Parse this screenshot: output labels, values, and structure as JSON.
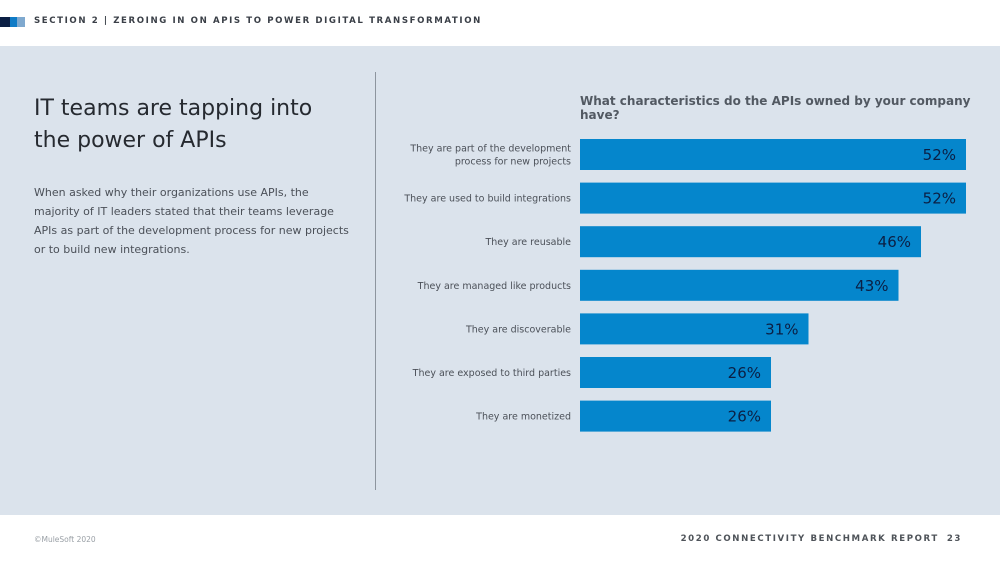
{
  "header": {
    "section_title": "SECTION 2 | ZEROING IN ON APIS TO POWER DIGITAL TRANSFORMATION",
    "marks_colors": [
      "#0b1f44",
      "#0f7bc6",
      "#7fa9cf"
    ]
  },
  "left": {
    "headline": "IT teams are tapping into the power of APIs",
    "body": "When asked why their organizations use APIs, the majority of IT leaders stated that their teams leverage APIs as part of the development process for new projects or to build new integrations."
  },
  "chart_data": {
    "type": "bar",
    "orientation": "horizontal",
    "title": "What characteristics do the APIs owned by your company have?",
    "categories": [
      [
        "They are part of the development",
        "process for new projects"
      ],
      [
        "They are used to build integrations"
      ],
      [
        "They are reusable"
      ],
      [
        "They are managed like products"
      ],
      [
        "They are discoverable"
      ],
      [
        "They are exposed to third parties"
      ],
      [
        "They are monetized"
      ]
    ],
    "values": [
      52,
      52,
      46,
      43,
      31,
      26,
      26
    ],
    "value_labels": [
      "52%",
      "52%",
      "46%",
      "43%",
      "31%",
      "26%",
      "26%"
    ],
    "unit": "%",
    "xlabel": "",
    "ylabel": "",
    "grid": false,
    "legend": "none",
    "bar_color": "#0586cc",
    "label_color": "#0b1f44"
  },
  "footer": {
    "copyright": "©MuleSoft 2020",
    "report_title": "2020 CONNECTIVITY BENCHMARK REPORT",
    "page_number": "23"
  }
}
